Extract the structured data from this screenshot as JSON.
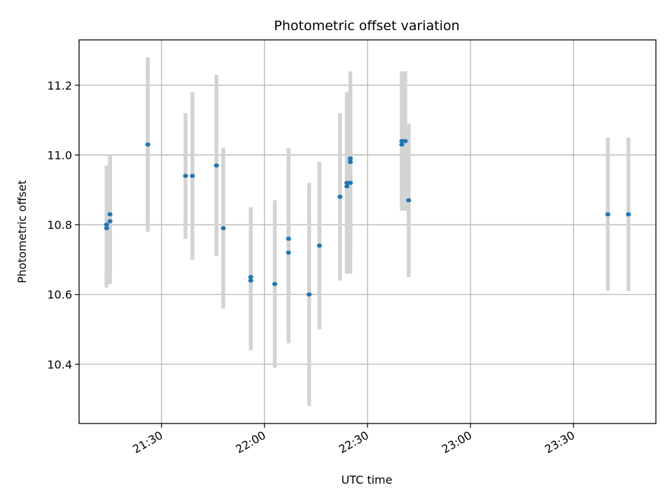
{
  "chart_data": {
    "type": "scatter",
    "title": "Photometric offset variation",
    "xlabel": "UTC time",
    "ylabel": "Photometric offset",
    "x_ticks": [
      "21:30",
      "22:00",
      "22:30",
      "23:00",
      "23:30"
    ],
    "y_ticks": [
      "10.4",
      "10.6",
      "10.8",
      "11.0",
      "11.2"
    ],
    "xlim": [
      "21:06",
      "23:54"
    ],
    "ylim": [
      10.23,
      11.33
    ],
    "grid": true,
    "marker_color": "#1f77b4",
    "errorbar_color": "#d3d3d3",
    "points": [
      {
        "x": "21:14",
        "y": 10.79,
        "err": 0.17
      },
      {
        "x": "21:14",
        "y": 10.8,
        "err": 0.17
      },
      {
        "x": "21:15",
        "y": 10.81,
        "err": 0.18
      },
      {
        "x": "21:15",
        "y": 10.83,
        "err": 0.17
      },
      {
        "x": "21:26",
        "y": 11.03,
        "err": 0.25
      },
      {
        "x": "21:37",
        "y": 10.94,
        "err": 0.18
      },
      {
        "x": "21:39",
        "y": 10.94,
        "err": 0.24
      },
      {
        "x": "21:46",
        "y": 10.97,
        "err": 0.26
      },
      {
        "x": "21:48",
        "y": 10.79,
        "err": 0.23
      },
      {
        "x": "21:56",
        "y": 10.65,
        "err": 0.2
      },
      {
        "x": "21:56",
        "y": 10.64,
        "err": 0.2
      },
      {
        "x": "22:03",
        "y": 10.63,
        "err": 0.24
      },
      {
        "x": "22:07",
        "y": 10.72,
        "err": 0.26
      },
      {
        "x": "22:07",
        "y": 10.76,
        "err": 0.26
      },
      {
        "x": "22:13",
        "y": 10.6,
        "err": 0.32
      },
      {
        "x": "22:16",
        "y": 10.74,
        "err": 0.24
      },
      {
        "x": "22:22",
        "y": 10.88,
        "err": 0.24
      },
      {
        "x": "22:24",
        "y": 10.91,
        "err": 0.25
      },
      {
        "x": "22:24",
        "y": 10.92,
        "err": 0.26
      },
      {
        "x": "22:25",
        "y": 10.92,
        "err": 0.26
      },
      {
        "x": "22:25",
        "y": 10.98,
        "err": 0.26
      },
      {
        "x": "22:25",
        "y": 10.99,
        "err": 0.21
      },
      {
        "x": "22:40",
        "y": 11.03,
        "err": 0.18
      },
      {
        "x": "22:40",
        "y": 11.04,
        "err": 0.2
      },
      {
        "x": "22:41",
        "y": 11.04,
        "err": 0.2
      },
      {
        "x": "22:42",
        "y": 10.87,
        "err": 0.22
      },
      {
        "x": "23:40",
        "y": 10.83,
        "err": 0.22
      },
      {
        "x": "23:46",
        "y": 10.83,
        "err": 0.22
      }
    ]
  }
}
